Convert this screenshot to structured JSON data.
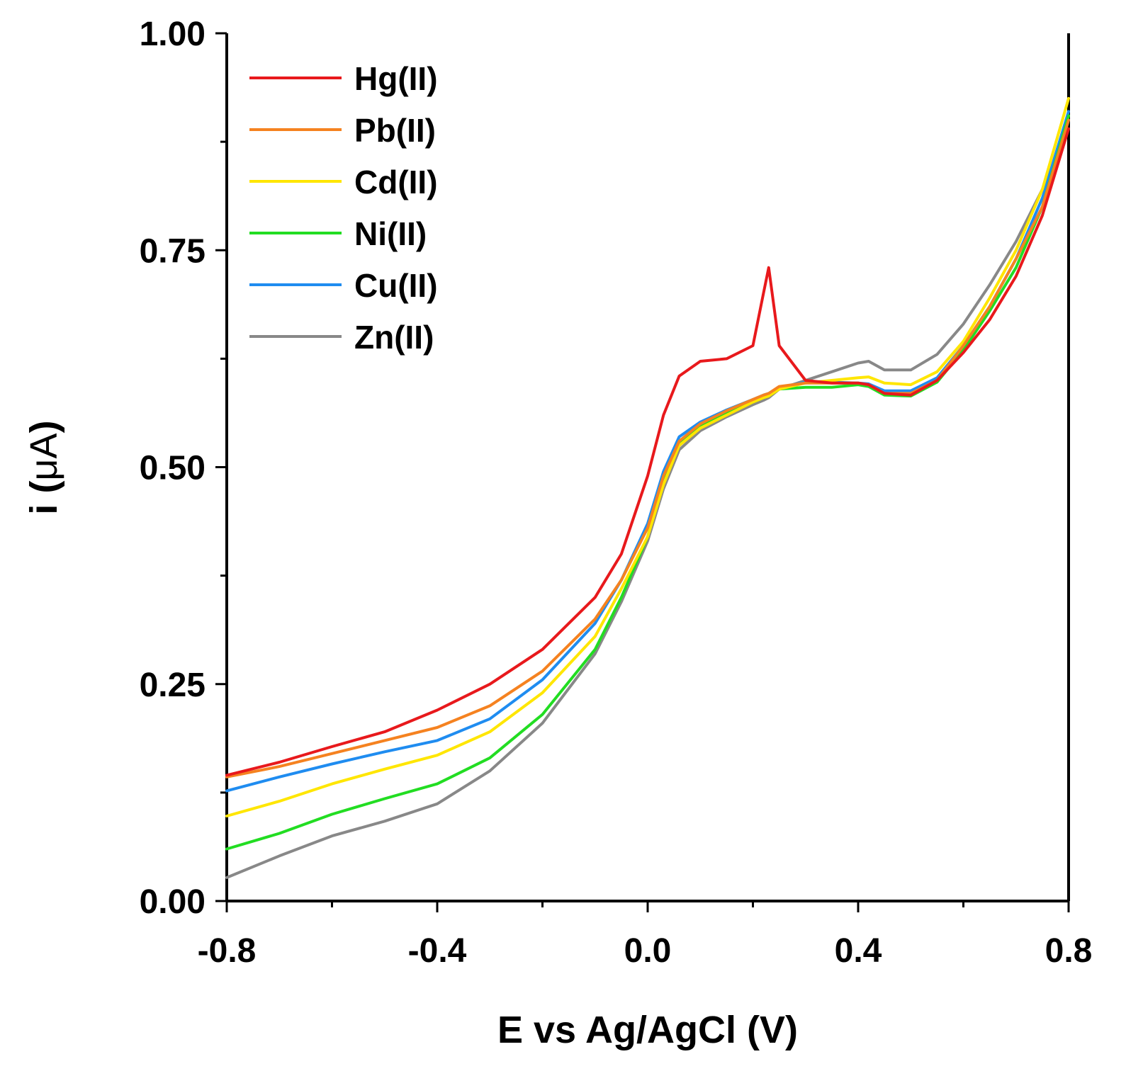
{
  "chart_data": {
    "type": "line",
    "title": "",
    "xlabel": "E vs Ag/AgCl (V)",
    "ylabel_prefix": "i (",
    "ylabel_unit": "μA",
    "ylabel_suffix": ")",
    "xlim": [
      -0.8,
      0.8
    ],
    "ylim": [
      0.0,
      1.0
    ],
    "xticks": [
      -0.8,
      -0.4,
      0.0,
      0.4,
      0.8
    ],
    "xtick_labels": [
      "-0.8",
      "-0.4",
      "0.0",
      "0.4",
      "0.8"
    ],
    "x_minor_ticks": [
      -0.6,
      -0.2,
      0.2,
      0.6
    ],
    "yticks": [
      0.0,
      0.25,
      0.5,
      0.75,
      1.0
    ],
    "ytick_labels": [
      "0.00",
      "0.25",
      "0.50",
      "0.75",
      "1.00"
    ],
    "y_minor_ticks": [
      0.125,
      0.375,
      0.625,
      0.875
    ],
    "grid": false,
    "legend_position": "top-left",
    "x": [
      -0.8,
      -0.7,
      -0.6,
      -0.5,
      -0.4,
      -0.3,
      -0.2,
      -0.1,
      -0.05,
      0.0,
      0.03,
      0.06,
      0.1,
      0.15,
      0.2,
      0.22,
      0.23,
      0.25,
      0.3,
      0.35,
      0.4,
      0.42,
      0.45,
      0.5,
      0.55,
      0.6,
      0.65,
      0.7,
      0.75,
      0.8
    ],
    "series": [
      {
        "name": "Hg(II)",
        "color": "#e8191c",
        "values": [
          0.145,
          0.16,
          0.178,
          0.195,
          0.22,
          0.25,
          0.29,
          0.35,
          0.4,
          0.49,
          0.56,
          0.605,
          0.622,
          0.625,
          0.64,
          0.7,
          0.73,
          0.64,
          0.6,
          0.597,
          0.597,
          0.595,
          0.585,
          0.583,
          0.6,
          0.632,
          0.67,
          0.72,
          0.79,
          0.89
        ]
      },
      {
        "name": "Pb(II)",
        "color": "#f58220",
        "values": [
          0.143,
          0.155,
          0.17,
          0.185,
          0.2,
          0.225,
          0.265,
          0.325,
          0.37,
          0.43,
          0.49,
          0.53,
          0.55,
          0.565,
          0.578,
          0.583,
          0.585,
          0.593,
          0.597,
          0.597,
          0.597,
          0.595,
          0.585,
          0.585,
          0.6,
          0.64,
          0.685,
          0.74,
          0.8,
          0.9
        ]
      },
      {
        "name": "Cd(II)",
        "color": "#ffe600",
        "values": [
          0.098,
          0.115,
          0.135,
          0.152,
          0.168,
          0.195,
          0.24,
          0.305,
          0.36,
          0.42,
          0.48,
          0.525,
          0.545,
          0.56,
          0.575,
          0.58,
          0.582,
          0.59,
          0.597,
          0.6,
          0.603,
          0.604,
          0.597,
          0.595,
          0.61,
          0.645,
          0.695,
          0.75,
          0.82,
          0.925
        ]
      },
      {
        "name": "Ni(II)",
        "color": "#22dd22",
        "values": [
          0.06,
          0.078,
          0.1,
          0.118,
          0.135,
          0.165,
          0.215,
          0.29,
          0.35,
          0.42,
          0.485,
          0.528,
          0.548,
          0.562,
          0.575,
          0.58,
          0.582,
          0.59,
          0.592,
          0.592,
          0.595,
          0.593,
          0.583,
          0.582,
          0.598,
          0.635,
          0.68,
          0.73,
          0.8,
          0.905
        ]
      },
      {
        "name": "Cu(II)",
        "color": "#1f8cf0",
        "values": [
          0.127,
          0.143,
          0.158,
          0.172,
          0.185,
          0.21,
          0.255,
          0.32,
          0.37,
          0.435,
          0.495,
          0.535,
          0.552,
          0.566,
          0.578,
          0.583,
          0.585,
          0.592,
          0.598,
          0.598,
          0.597,
          0.596,
          0.588,
          0.588,
          0.603,
          0.64,
          0.685,
          0.74,
          0.81,
          0.91
        ]
      },
      {
        "name": "Zn(II)",
        "color": "#888888",
        "values": [
          0.027,
          0.052,
          0.075,
          0.092,
          0.112,
          0.15,
          0.205,
          0.285,
          0.345,
          0.415,
          0.475,
          0.52,
          0.542,
          0.558,
          0.572,
          0.577,
          0.58,
          0.59,
          0.6,
          0.61,
          0.62,
          0.622,
          0.612,
          0.612,
          0.63,
          0.665,
          0.71,
          0.76,
          0.82,
          0.89
        ]
      }
    ]
  }
}
